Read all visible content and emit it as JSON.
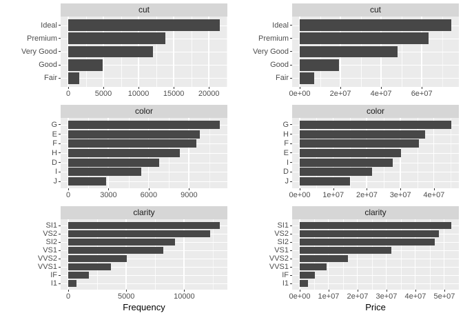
{
  "style": {
    "bar_color": "#474747",
    "panel_bg": "#EBEBEB",
    "strip_bg": "#D6D6D6",
    "strip_text_color": "#1A1A1A",
    "grid_major_color": "#FFFFFF",
    "grid_minor_color": "rgba(255,255,255,0.55)",
    "tick_mark_color": "#333333",
    "axis_text_color": "#4D4D4D",
    "axis_title_color": "#000000"
  },
  "chart_data": [
    {
      "type": "bar",
      "orientation": "horizontal",
      "title": "cut",
      "xlabel": "",
      "categories": [
        "Ideal",
        "Premium",
        "Very Good",
        "Good",
        "Fair"
      ],
      "values": [
        21551,
        13791,
        12082,
        4906,
        1610
      ],
      "tick_values": [
        0,
        5000,
        10000,
        15000,
        20000
      ],
      "tick_labels": [
        "0",
        "5000",
        "10000",
        "15000",
        "20000"
      ],
      "xlim": [
        -1078,
        22629
      ],
      "grid": true,
      "legend": "none"
    },
    {
      "type": "bar",
      "orientation": "horizontal",
      "title": "cut",
      "xlabel": "",
      "categories": [
        "Ideal",
        "Premium",
        "Very Good",
        "Good",
        "Fair"
      ],
      "values": [
        74513000,
        63220000,
        48110000,
        19280000,
        7020000
      ],
      "tick_values": [
        0,
        20000000,
        40000000,
        60000000
      ],
      "tick_labels": [
        "0e+00",
        "2e+07",
        "4e+07",
        "6e+07"
      ],
      "xlim": [
        -3726000,
        78239000
      ],
      "grid": true,
      "legend": "none"
    },
    {
      "type": "bar",
      "orientation": "horizontal",
      "title": "color",
      "xlabel": "",
      "categories": [
        "G",
        "E",
        "F",
        "H",
        "D",
        "I",
        "J"
      ],
      "values": [
        11292,
        9797,
        9542,
        8304,
        6775,
        5422,
        2808
      ],
      "tick_values": [
        0,
        3000,
        6000,
        9000
      ],
      "tick_labels": [
        "0",
        "3000",
        "6000",
        "9000"
      ],
      "xlim": [
        -565,
        11857
      ],
      "grid": true,
      "legend": "none"
    },
    {
      "type": "bar",
      "orientation": "horizontal",
      "title": "color",
      "xlabel": "",
      "categories": [
        "G",
        "H",
        "F",
        "E",
        "I",
        "D",
        "J"
      ],
      "values": [
        45160000,
        37260000,
        35540000,
        30140000,
        27610000,
        21480000,
        14950000
      ],
      "tick_values": [
        0,
        10000000,
        20000000,
        30000000,
        40000000
      ],
      "tick_labels": [
        "0e+00",
        "1e+07",
        "2e+07",
        "3e+07",
        "4e+07"
      ],
      "xlim": [
        -2258000,
        47418000
      ],
      "grid": true,
      "legend": "none"
    },
    {
      "type": "bar",
      "orientation": "horizontal",
      "title": "clarity",
      "xlabel": "Frequency",
      "categories": [
        "SI1",
        "VS2",
        "SI2",
        "VS1",
        "VVS2",
        "VVS1",
        "IF",
        "I1"
      ],
      "values": [
        13065,
        12258,
        9194,
        8171,
        5066,
        3655,
        1790,
        741
      ],
      "tick_values": [
        0,
        5000,
        10000
      ],
      "tick_labels": [
        "0",
        "5000",
        "10000"
      ],
      "xlim": [
        -653,
        13718
      ],
      "grid": true,
      "legend": "none"
    },
    {
      "type": "bar",
      "orientation": "horizontal",
      "title": "clarity",
      "xlabel": "Price",
      "categories": [
        "SI1",
        "VS2",
        "SI2",
        "VS1",
        "VVS2",
        "VVS1",
        "IF",
        "I1"
      ],
      "values": [
        52400000,
        48110000,
        46630000,
        31710000,
        16770000,
        9370000,
        5270000,
        2890000
      ],
      "tick_values": [
        0,
        10000000,
        20000000,
        30000000,
        40000000,
        50000000
      ],
      "tick_labels": [
        "0e+00",
        "1e+07",
        "2e+07",
        "3e+07",
        "4e+07",
        "5e+07"
      ],
      "xlim": [
        -2620000,
        55020000
      ],
      "grid": true,
      "legend": "none"
    }
  ]
}
